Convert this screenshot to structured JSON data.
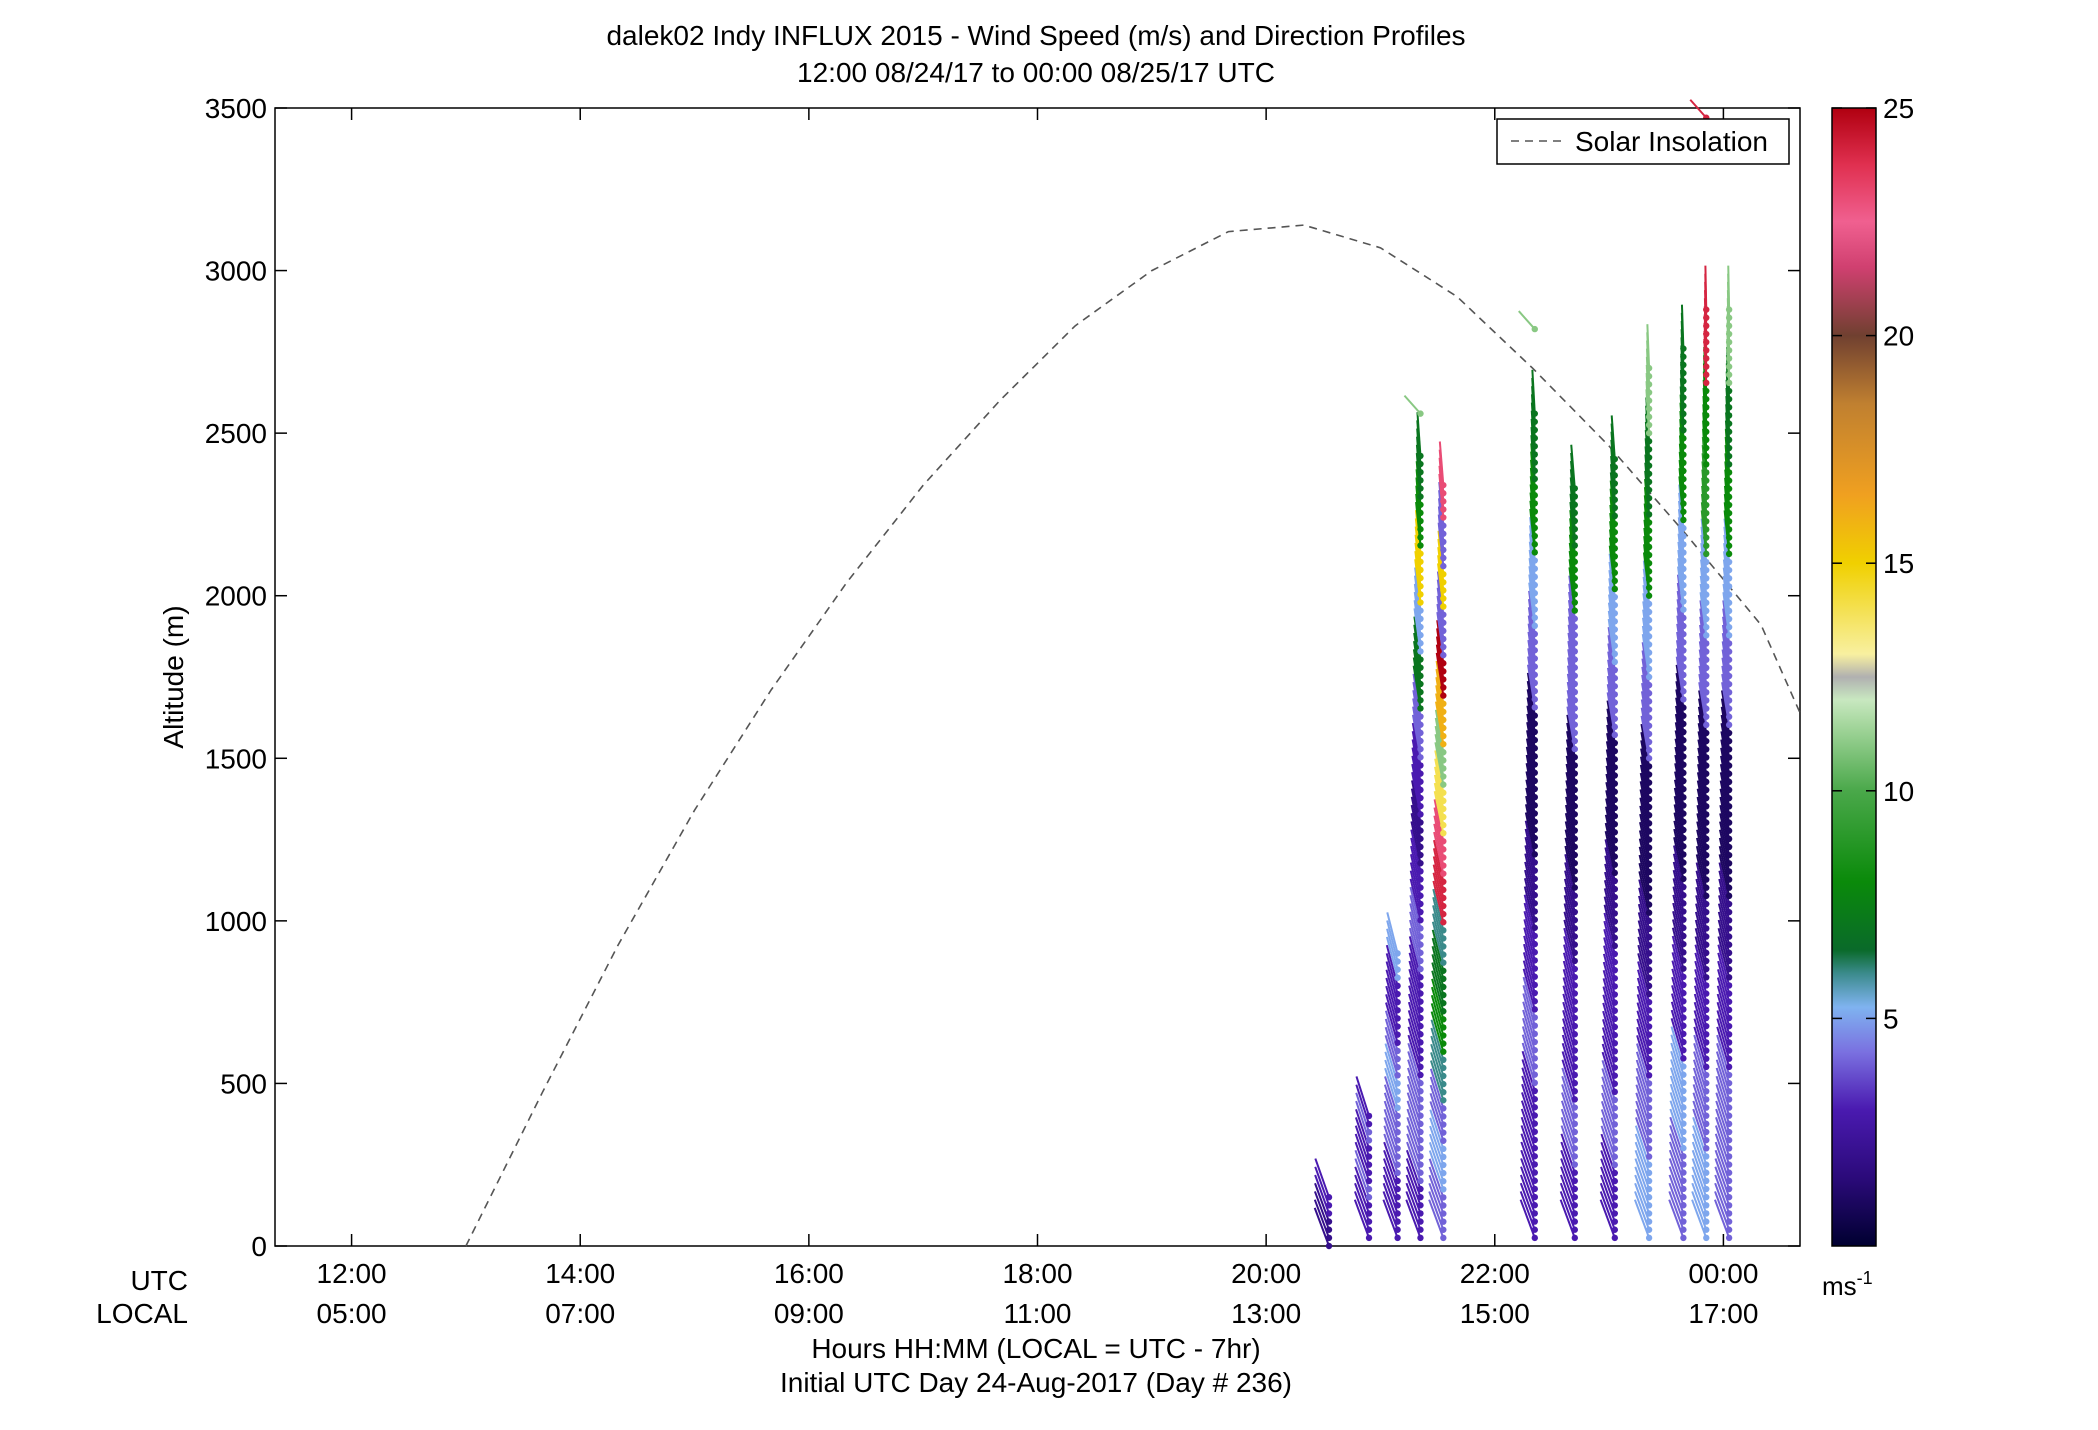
{
  "chart_data": {
    "type": "scatter",
    "subtype": "wind-barb profile",
    "title": "dalek02 Indy INFLUX 2015 - Wind Speed (m/s) and Direction Profiles",
    "subtitle": "12:00 08/24/17 to 00:00 08/25/17  UTC",
    "ylabel": "Altitude (m)",
    "xlabel": "Hours HH:MM  (LOCAL = UTC - 7hr)",
    "xlabel2": "Initial UTC Day 24-Aug-2017 (Day # 236)",
    "x_axis_row_labels": [
      "UTC",
      "LOCAL"
    ],
    "xlim_hours_utc": [
      11.33,
      24.67
    ],
    "ylim": [
      0,
      3500
    ],
    "y_ticks": [
      "0",
      "500",
      "1000",
      "1500",
      "2000",
      "2500",
      "3000",
      "3500"
    ],
    "x_ticks_utc": [
      "12:00",
      "14:00",
      "16:00",
      "18:00",
      "20:00",
      "22:00",
      "00:00"
    ],
    "x_ticks_local": [
      "05:00",
      "07:00",
      "09:00",
      "11:00",
      "13:00",
      "15:00",
      "17:00"
    ],
    "legend": {
      "label": "Solar Insolation",
      "position": "top-right"
    },
    "colorbar": {
      "range": [
        0,
        25
      ],
      "ticks": [
        "5",
        "10",
        "15",
        "20",
        "25"
      ],
      "unit_base": "ms",
      "unit_exp": "-1"
    },
    "solar_insolation": {
      "x_hours_utc": [
        13.0,
        13.67,
        14.33,
        15.0,
        15.67,
        16.33,
        17.0,
        17.67,
        18.33,
        19.0,
        19.67,
        20.33,
        21.0,
        21.67,
        22.33,
        23.0,
        23.67,
        24.33,
        24.67
      ],
      "y": [
        0,
        473,
        925,
        1340,
        1710,
        2040,
        2340,
        2600,
        2830,
        3000,
        3120,
        3140,
        3070,
        2920,
        2700,
        2460,
        2190,
        1910,
        1640
      ]
    },
    "profiles": [
      {
        "time_utc": 20.55,
        "ymin": 0,
        "ymax": 150,
        "speed": [
          2,
          2,
          3,
          3
        ]
      },
      {
        "time_utc": 20.9,
        "ymin": 25,
        "ymax": 400,
        "speed": [
          3,
          3,
          4,
          3,
          3,
          4,
          3
        ]
      },
      {
        "time_utc": 21.15,
        "ymin": 25,
        "ymax": 900,
        "speed": [
          3,
          3,
          4,
          4,
          5,
          4,
          3,
          3,
          5
        ]
      },
      {
        "time_utc": 21.35,
        "ymin": 25,
        "ymax": 2430,
        "speed": [
          3,
          4,
          4,
          3,
          3,
          4,
          3,
          2,
          3,
          4,
          7,
          5,
          15,
          8,
          7
        ]
      },
      {
        "time_utc": 21.55,
        "ymin": 25,
        "ymax": 2340,
        "speed": [
          4,
          5,
          4,
          6,
          8,
          7,
          6,
          24,
          23,
          14,
          11,
          16,
          25,
          4,
          15,
          4,
          23
        ]
      },
      {
        "time_utc": 22.35,
        "ymin": 25,
        "ymax": 2560,
        "speed": [
          3,
          3,
          4,
          3,
          2,
          1,
          1,
          4,
          5,
          8,
          7
        ]
      },
      {
        "time_utc": 22.7,
        "ymin": 25,
        "ymax": 2330,
        "speed": [
          3,
          4,
          3,
          3,
          2,
          1,
          1,
          4,
          4,
          8,
          7
        ]
      },
      {
        "time_utc": 23.05,
        "ymin": 25,
        "ymax": 2420,
        "speed": [
          3,
          4,
          3,
          3,
          2,
          1,
          1,
          4,
          5,
          8,
          7
        ]
      },
      {
        "time_utc": 23.35,
        "ymin": 25,
        "ymax": 2700,
        "speed": [
          5,
          4,
          3,
          2,
          1,
          1,
          4,
          5,
          8,
          7,
          11
        ]
      },
      {
        "time_utc": 23.65,
        "ymin": 25,
        "ymax": 2760,
        "speed": [
          4,
          5,
          3,
          2,
          1,
          1,
          4,
          5,
          8,
          7
        ]
      },
      {
        "time_utc": 23.85,
        "ymin": 25,
        "ymax": 2880,
        "speed": [
          5,
          4,
          3,
          2,
          1,
          1,
          4,
          5,
          9,
          8,
          24
        ]
      },
      {
        "time_utc": 24.05,
        "ymin": 25,
        "ymax": 2880,
        "speed": [
          4,
          4,
          3,
          2,
          1,
          1,
          4,
          5,
          8,
          7,
          11
        ]
      }
    ],
    "annotations": [
      {
        "time_utc": 23.85,
        "y": 3470,
        "speed": 24
      },
      {
        "time_utc": 22.35,
        "y": 2820,
        "speed": 11
      },
      {
        "time_utc": 21.35,
        "y": 2560,
        "speed": 11
      }
    ]
  }
}
